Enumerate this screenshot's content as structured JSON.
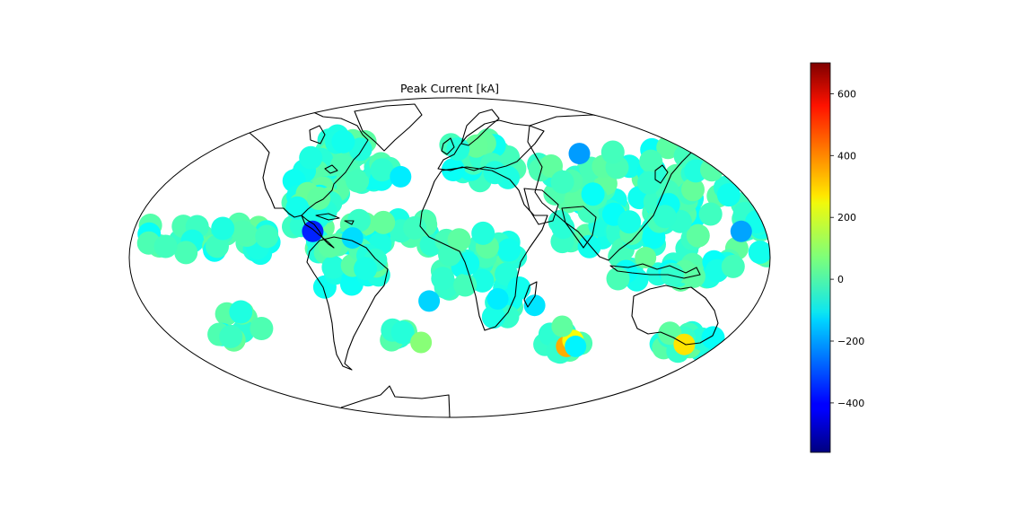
{
  "map": {
    "title": "Peak Current [kA]",
    "projection": "mollweide",
    "colormap": "jet",
    "colorbar": {
      "min": -560,
      "max": 700,
      "ticks": [
        600,
        400,
        200,
        0,
        -200,
        -400
      ],
      "tick_labels": [
        "600",
        "400",
        "200",
        "0",
        "−200",
        "−400"
      ]
    },
    "strikes": [
      {
        "lon": -78,
        "lat": 12,
        "value": -360
      },
      {
        "lon": -32,
        "lat": 38,
        "value": -110
      },
      {
        "lon": -55,
        "lat": 9,
        "value": -130
      },
      {
        "lon": -12,
        "lat": -20,
        "value": -140
      },
      {
        "lon": 50,
        "lat": -22,
        "value": -120
      },
      {
        "lon": 28,
        "lat": -19,
        "value": -110
      },
      {
        "lon": 79,
        "lat": -42,
        "value": 330
      },
      {
        "lon": 81,
        "lat": -39,
        "value": 220
      },
      {
        "lon": 85,
        "lat": -42,
        "value": -100
      },
      {
        "lon": 157,
        "lat": -41,
        "value": 260
      },
      {
        "lon": 166,
        "lat": 12,
        "value": -200
      },
      {
        "lon": 96,
        "lat": 50,
        "value": -210
      },
      {
        "lon": -19,
        "lat": -40,
        "value": 80
      },
      {
        "lon": 70,
        "lat": -32,
        "value": 30
      },
      {
        "lon": 110,
        "lat": 0,
        "value": 40
      }
    ]
  }
}
